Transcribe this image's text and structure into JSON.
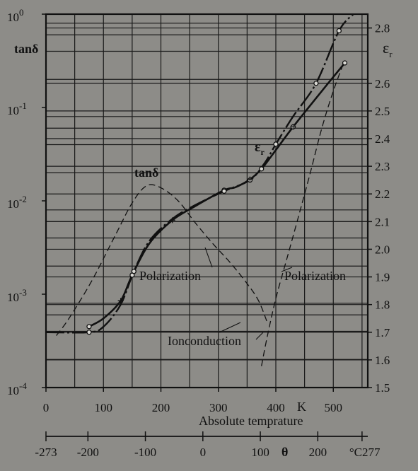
{
  "chart_data": {
    "type": "line",
    "x_axis": {
      "label": "Absolute temprature",
      "unit_label": "K",
      "range": [
        0,
        560
      ],
      "ticks": [
        0,
        100,
        200,
        300,
        400,
        500
      ]
    },
    "secondary_x_axis": {
      "unit_label": "θ",
      "unit_suffix": "°C",
      "range": [
        -273,
        287
      ],
      "ticks": [
        "-273",
        "-200",
        "-100",
        "0",
        "100",
        "200",
        "277"
      ]
    },
    "y_axis_left": {
      "label": "tanδ",
      "scale": "log",
      "range": [
        0.0001,
        1
      ],
      "ticks": [
        {
          "value": 0.0001,
          "base": "10",
          "exp": "-4"
        },
        {
          "value": 0.001,
          "base": "10",
          "exp": "-3"
        },
        {
          "value": 0.01,
          "base": "10",
          "exp": "-2"
        },
        {
          "value": 0.1,
          "base": "10",
          "exp": "-1"
        },
        {
          "value": 1,
          "base": "10",
          "exp": "0"
        }
      ]
    },
    "y_axis_right": {
      "label_main": "ε",
      "label_sub": "r",
      "range": [
        1.5,
        2.85
      ],
      "ticks": [
        "1.5",
        "1.6",
        "1.7",
        "1.8",
        "1.9",
        "2.0",
        "2.1",
        "2.2",
        "2.3",
        "2.4",
        "2.5",
        "2.6",
        "2.8"
      ]
    },
    "grid": true,
    "series": [
      {
        "name": "tanδ",
        "axis": "left",
        "points": [
          [
            75,
            0.00045
          ],
          [
            100,
            0.00055
          ],
          [
            130,
            0.00085
          ],
          [
            150,
            0.0016
          ],
          [
            180,
            0.0035
          ],
          [
            220,
            0.0062
          ],
          [
            260,
            0.0088
          ],
          [
            310,
            0.013
          ],
          [
            330,
            0.014
          ],
          [
            355,
            0.017
          ],
          [
            375,
            0.022
          ],
          [
            400,
            0.035
          ],
          [
            430,
            0.062
          ],
          [
            480,
            0.15
          ],
          [
            520,
            0.3
          ]
        ]
      },
      {
        "name": "εr",
        "axis": "right",
        "points": [
          [
            0,
            1.7
          ],
          [
            75,
            1.7
          ],
          [
            100,
            1.72
          ],
          [
            130,
            1.8
          ],
          [
            153,
            1.92
          ],
          [
            180,
            2.03
          ],
          [
            220,
            2.11
          ],
          [
            260,
            2.16
          ],
          [
            310,
            2.21
          ],
          [
            355,
            2.25
          ],
          [
            380,
            2.31
          ],
          [
            400,
            2.38
          ],
          [
            430,
            2.48
          ],
          [
            470,
            2.6
          ],
          [
            510,
            2.79
          ],
          [
            535,
            2.85
          ]
        ]
      },
      {
        "name": "Polarization",
        "axis": "left",
        "style": "dashed",
        "points": [
          [
            18,
            0.00036
          ],
          [
            40,
            0.00055
          ],
          [
            80,
            0.0014
          ],
          [
            120,
            0.0042
          ],
          [
            150,
            0.0095
          ],
          [
            175,
            0.0145
          ],
          [
            200,
            0.0138
          ],
          [
            230,
            0.01
          ],
          [
            260,
            0.0058
          ],
          [
            290,
            0.0035
          ],
          [
            320,
            0.0022
          ],
          [
            350,
            0.0013
          ],
          [
            370,
            0.00085
          ],
          [
            385,
            0.0005
          ]
        ]
      },
      {
        "name": "Ionconduction",
        "axis": "left",
        "style": "dashed",
        "points": [
          [
            375,
            0.00017
          ],
          [
            385,
            0.00035
          ],
          [
            400,
            0.0009
          ],
          [
            420,
            0.0025
          ],
          [
            440,
            0.007
          ],
          [
            460,
            0.02
          ],
          [
            480,
            0.06
          ],
          [
            500,
            0.15
          ],
          [
            518,
            0.3
          ]
        ]
      }
    ],
    "annotations": [
      {
        "text": "tanδ"
      },
      {
        "text": "ε",
        "sub": "r"
      },
      {
        "text": "Polarization"
      },
      {
        "text": "Polarization"
      },
      {
        "text": "Ionconduction"
      }
    ]
  }
}
